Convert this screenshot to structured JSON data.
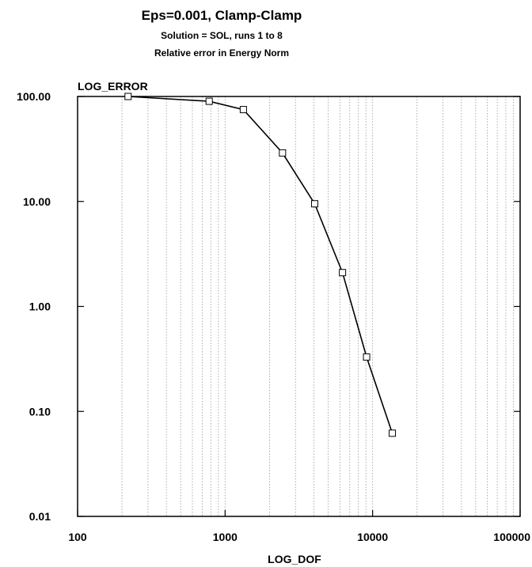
{
  "chart_data": {
    "type": "line",
    "title": "Eps=0.001, Clamp-Clamp",
    "subtitle": "Solution = SOL, runs 1 to 8",
    "subtitle2": "Relative error in Energy Norm",
    "xlabel": "LOG_DOF",
    "ylabel": "LOG_ERROR",
    "xscale": "log",
    "yscale": "log",
    "xlim": [
      100,
      100000
    ],
    "ylim": [
      0.01,
      100
    ],
    "xticks": [
      "100",
      "1000",
      "10000",
      "100000"
    ],
    "yticks": [
      "0.01",
      "0.10",
      "1.00",
      "10.00",
      "100.00"
    ],
    "grid": "vertical dotted",
    "marker": "open-square",
    "series": [
      {
        "x": [
          220,
          780,
          1330,
          2450,
          4050,
          6250,
          9100,
          13600
        ],
        "y": [
          100,
          90,
          75,
          29,
          9.5,
          2.1,
          0.33,
          0.062
        ]
      }
    ]
  }
}
